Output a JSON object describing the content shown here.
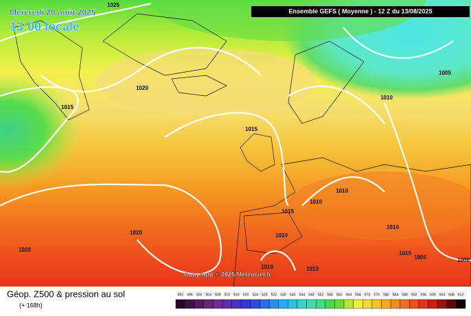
{
  "header": {
    "date": "Mercredi 20 août 2025",
    "time": "13:00 locale",
    "model": "Ensemble GEFS  ( Moyenne )  - 12 Z du 13/08/2025"
  },
  "isobar_labels": [
    "1025",
    "1020",
    "1015",
    "1015",
    "1010",
    "1005",
    "1015",
    "1010",
    "1010",
    "1010",
    "1020",
    "1020",
    "1010",
    "1010",
    "1010",
    "1005",
    "1010",
    "1000"
  ],
  "copyright": "Copyright © 2025 Meteociel.fr",
  "footer": {
    "title": "Géop. Z500 & pression au sol",
    "lead": "(+ 168h)"
  },
  "scale_labels": [
    "492",
    "496",
    "500",
    "504",
    "508",
    "512",
    "516",
    "520",
    "524",
    "528",
    "532",
    "536",
    "540",
    "544",
    "548",
    "552",
    "556",
    "560",
    "564",
    "568",
    "572",
    "576",
    "580",
    "584",
    "588",
    "592",
    "596",
    "600",
    "604",
    "608",
    "612"
  ]
}
